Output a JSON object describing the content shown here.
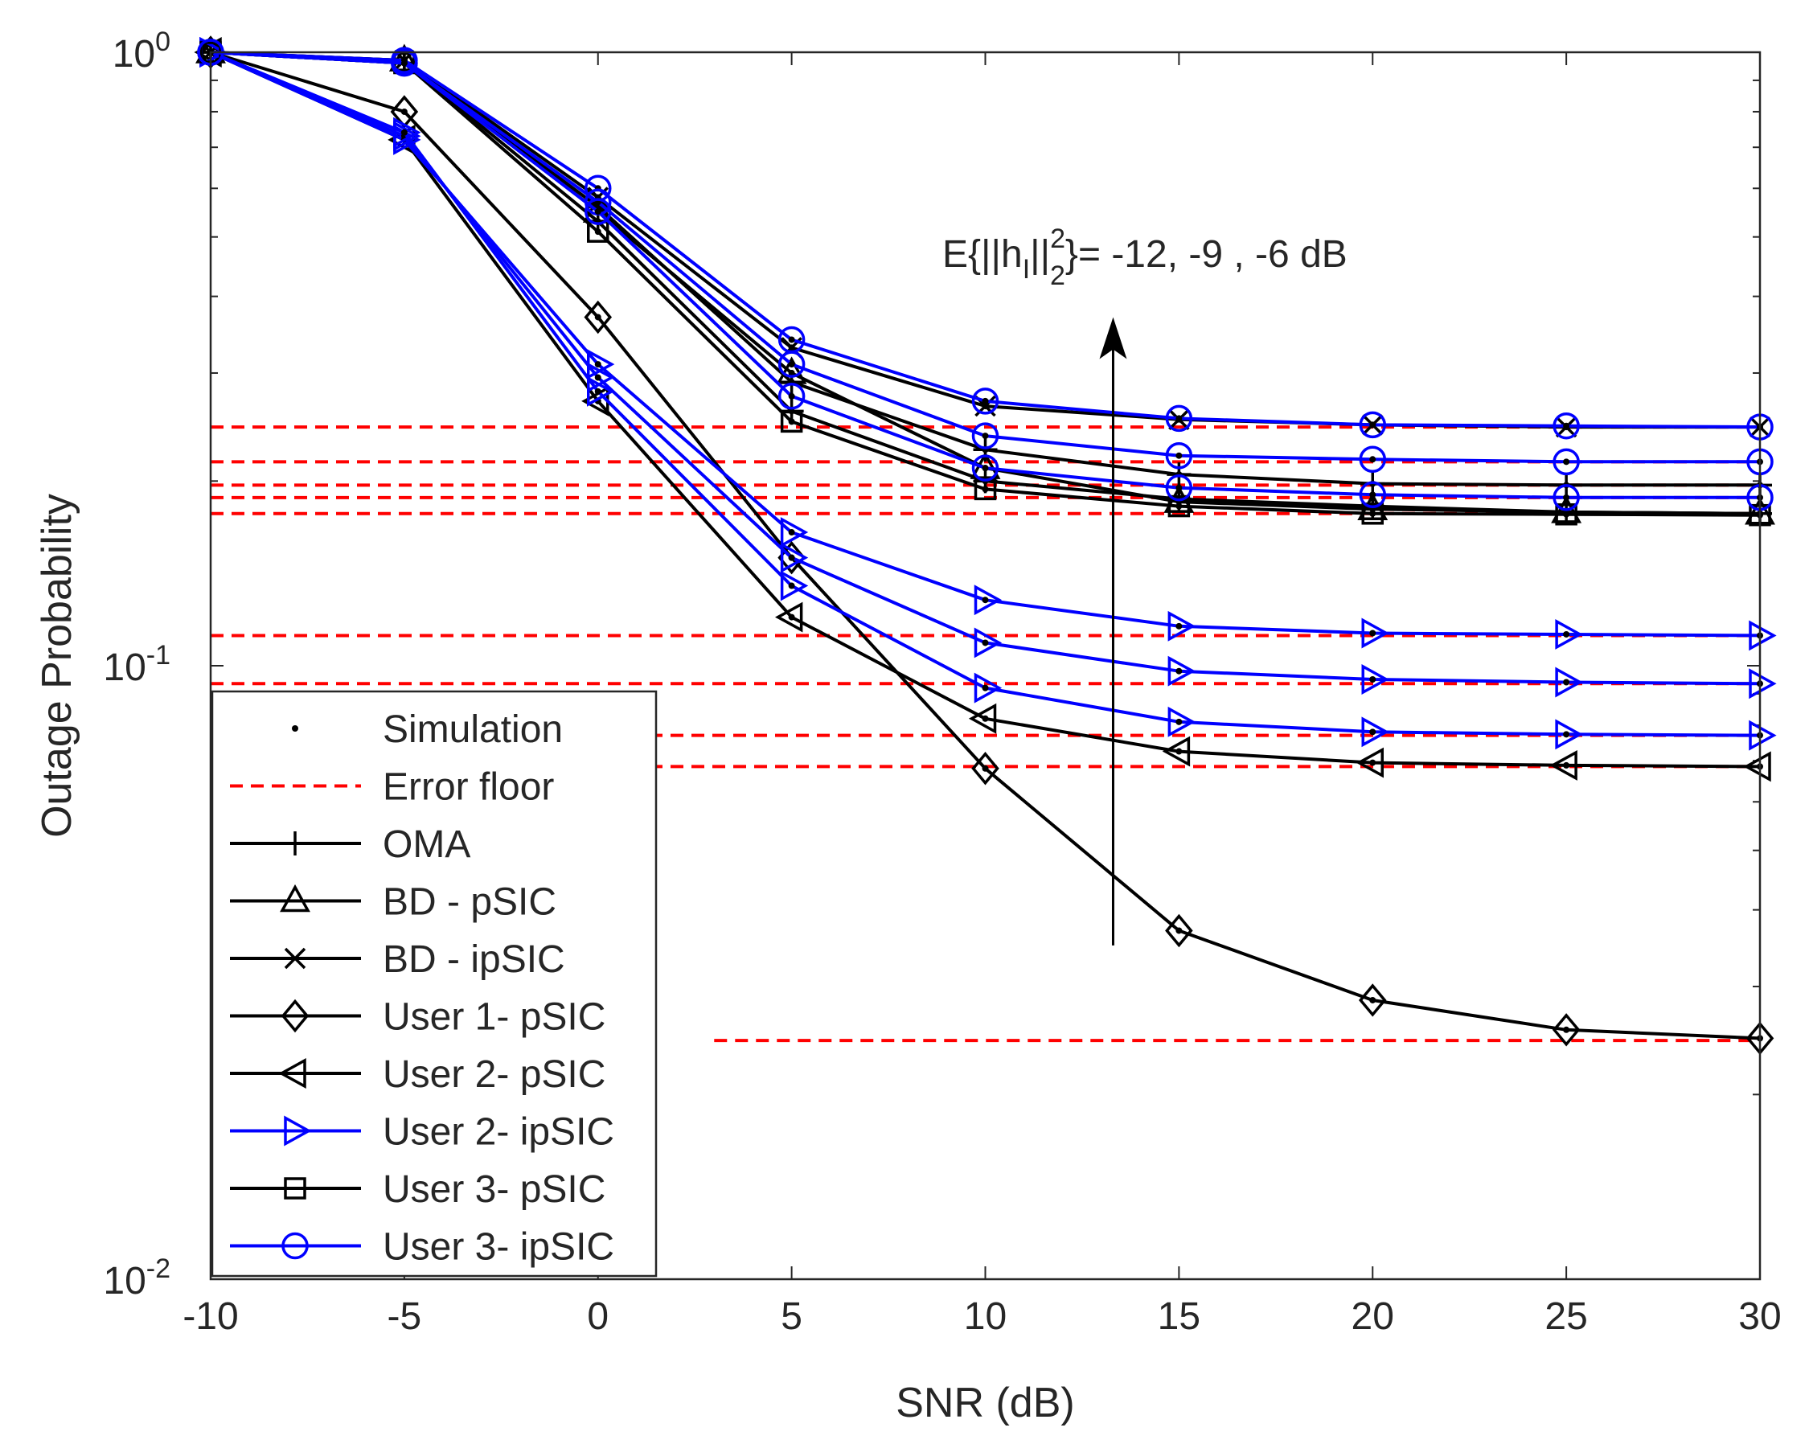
{
  "chart_data": {
    "type": "line",
    "xlabel": "SNR (dB)",
    "ylabel": "Outage Probability",
    "xlim": [
      -10,
      30
    ],
    "ylim": [
      0.01,
      1
    ],
    "yscale": "log",
    "x_ticks": [
      -10,
      -5,
      0,
      5,
      10,
      15,
      20,
      25,
      30
    ],
    "x_tick_labels": [
      "-10",
      "-5",
      "0",
      "5",
      "10",
      "15",
      "20",
      "25",
      "30"
    ],
    "y_ticks": [
      {
        "value": 1,
        "base": "10",
        "exp": "0"
      },
      {
        "value": 0.1,
        "base": "10",
        "exp": "-1"
      },
      {
        "value": 0.01,
        "base": "10",
        "exp": "-2"
      }
    ],
    "annotation": {
      "prefix": "E{||h",
      "sub1": "I",
      "mid": "||",
      "sup2": "2",
      "sub2": "2",
      "suffix": "}= -12, -9 , -6 dB",
      "arrow_x": 13.3,
      "arrow_y_from": 0.035,
      "arrow_y_to": 0.37
    },
    "x": [
      -10,
      -5,
      0,
      5,
      10,
      15,
      20,
      25,
      30
    ],
    "legend": {
      "position": "lower-left",
      "entries": [
        {
          "label": "Simulation",
          "marker": "dot",
          "color": "#000000",
          "line": "none"
        },
        {
          "label": "Error floor",
          "marker": "none",
          "color": "#ff0000",
          "line": "dashed"
        },
        {
          "label": "OMA",
          "marker": "plus",
          "color": "#000000",
          "line": "solid"
        },
        {
          "label": "BD - pSIC",
          "marker": "triangle-up",
          "color": "#000000",
          "line": "solid"
        },
        {
          "label": "BD - ipSIC",
          "marker": "x",
          "color": "#000000",
          "line": "solid"
        },
        {
          "label": "User 1- pSIC",
          "marker": "diamond",
          "color": "#000000",
          "line": "solid"
        },
        {
          "label": "User 2- pSIC",
          "marker": "triangle-left",
          "color": "#000000",
          "line": "solid"
        },
        {
          "label": "User 2- ipSIC",
          "marker": "triangle-right",
          "color": "#0000ff",
          "line": "solid"
        },
        {
          "label": "User 3- pSIC",
          "marker": "square",
          "color": "#000000",
          "line": "solid"
        },
        {
          "label": "User 3- ipSIC",
          "marker": "circle",
          "color": "#0000ff",
          "line": "solid"
        }
      ]
    },
    "error_floors": [
      {
        "value": 0.245,
        "x_from": -10
      },
      {
        "value": 0.215,
        "x_from": -10
      },
      {
        "value": 0.197,
        "x_from": -10
      },
      {
        "value": 0.188,
        "x_from": -10
      },
      {
        "value": 0.177,
        "x_from": -10
      },
      {
        "value": 0.112,
        "x_from": -10
      },
      {
        "value": 0.0935,
        "x_from": -10
      },
      {
        "value": 0.077,
        "x_from": -10
      },
      {
        "value": 0.0685,
        "x_from": -10
      },
      {
        "value": 0.0245,
        "x_from": 3
      }
    ],
    "series": [
      {
        "name": "OMA",
        "marker": "plus",
        "color": "#000000",
        "values": [
          [
            1.0,
            0.96,
            0.56,
            0.29,
            0.225,
            0.205,
            0.198,
            0.197,
            0.197
          ],
          [
            1.0,
            0.96,
            0.53,
            0.26,
            0.2,
            0.187,
            0.182,
            0.178,
            0.177
          ]
        ]
      },
      {
        "name": "BD - pSIC",
        "marker": "triangle-up",
        "color": "#000000",
        "values": [
          [
            1.0,
            0.97,
            0.55,
            0.3,
            0.21,
            0.185,
            0.18,
            0.178,
            0.177
          ]
        ]
      },
      {
        "name": "BD - ipSIC",
        "marker": "x",
        "color": "#000000",
        "values": [
          [
            1.0,
            0.97,
            0.58,
            0.33,
            0.265,
            0.252,
            0.247,
            0.245,
            0.245
          ]
        ]
      },
      {
        "name": "User 1- pSIC",
        "marker": "diamond",
        "color": "#000000",
        "values": [
          [
            1.0,
            0.8,
            0.37,
            0.15,
            0.068,
            0.037,
            0.0285,
            0.0255,
            0.0247
          ]
        ]
      },
      {
        "name": "User 2- pSIC",
        "marker": "triangle-left",
        "color": "#000000",
        "values": [
          [
            1.0,
            0.72,
            0.27,
            0.12,
            0.082,
            0.0725,
            0.0695,
            0.0688,
            0.0685
          ]
        ]
      },
      {
        "name": "User 2- ipSIC",
        "marker": "triangle-right",
        "color": "#0000ff",
        "values": [
          [
            1.0,
            0.72,
            0.31,
            0.165,
            0.128,
            0.116,
            0.113,
            0.1125,
            0.112
          ],
          [
            1.0,
            0.73,
            0.295,
            0.15,
            0.109,
            0.098,
            0.095,
            0.094,
            0.0935
          ],
          [
            1.0,
            0.74,
            0.28,
            0.135,
            0.092,
            0.081,
            0.078,
            0.0773,
            0.077
          ]
        ]
      },
      {
        "name": "User 3- pSIC",
        "marker": "square",
        "color": "#000000",
        "values": [
          [
            1.0,
            0.96,
            0.51,
            0.25,
            0.194,
            0.182,
            0.177,
            0.1765,
            0.176
          ]
        ]
      },
      {
        "name": "User 3- ipSIC",
        "marker": "circle",
        "color": "#0000ff",
        "values": [
          [
            1.0,
            0.97,
            0.6,
            0.34,
            0.27,
            0.253,
            0.247,
            0.246,
            0.245
          ],
          [
            1.0,
            0.96,
            0.57,
            0.31,
            0.237,
            0.22,
            0.217,
            0.215,
            0.215
          ],
          [
            1.0,
            0.96,
            0.55,
            0.275,
            0.21,
            0.195,
            0.19,
            0.188,
            0.188
          ]
        ]
      }
    ]
  }
}
